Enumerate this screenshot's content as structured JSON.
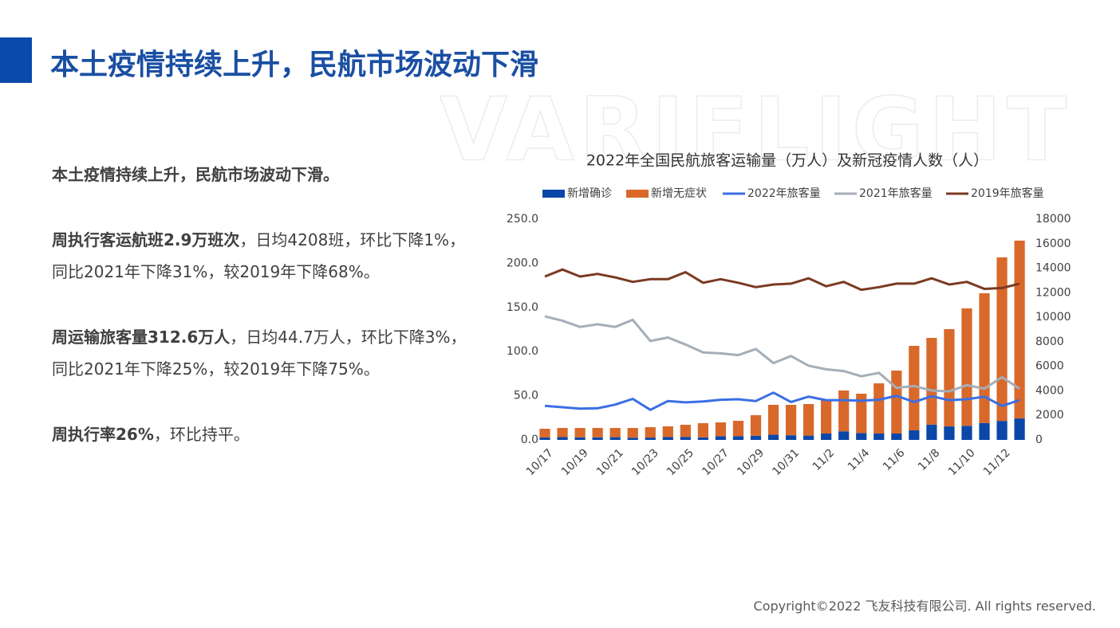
{
  "header": {
    "title": "本土疫情持续上升，民航市场波动下滑"
  },
  "watermark": "VARIFLIGHT",
  "paragraphs": [
    [
      {
        "text": "本土疫情持续上升，民航市场波动下滑。",
        "bold": true
      }
    ],
    [
      {
        "text": "周执行客运航班2.9万班次",
        "bold": true
      },
      {
        "text": "，日均4208班，环比下降1%，同比2021年下降31%，较2019年下降68%。",
        "bold": false
      }
    ],
    [
      {
        "text": "周运输旅客量312.6万人",
        "bold": true
      },
      {
        "text": "，日均44.7万人，环比下降3%，同比2021年下降25%，较2019年下降75%。",
        "bold": false
      }
    ],
    [
      {
        "text": "周执行率26%",
        "bold": true
      },
      {
        "text": "，环比持平。",
        "bold": false
      }
    ]
  ],
  "copyright": "Copyright©2022 飞友科技有限公司. All rights reserved.",
  "chart_data": {
    "type": "combo",
    "title": "2022年全国民航旅客运输量（万人）及新冠疫情人数（人）",
    "categories": [
      "10/17",
      null,
      "10/19",
      null,
      "10/21",
      null,
      "10/23",
      null,
      "10/25",
      null,
      "10/27",
      null,
      "10/29",
      null,
      "10/31",
      null,
      "11/2",
      null,
      "11/4",
      null,
      "11/6",
      null,
      "11/8",
      null,
      "11/10",
      null,
      "11/12",
      null
    ],
    "ylim": [
      0,
      250
    ],
    "yticks": [
      {
        "value": 0,
        "label": "0.0"
      },
      {
        "value": 50,
        "label": "50.0"
      },
      {
        "value": 100,
        "label": "100.0"
      },
      {
        "value": 150,
        "label": "150.0"
      },
      {
        "value": 200,
        "label": "200.0"
      },
      {
        "value": 250,
        "label": "250.0"
      }
    ],
    "y2lim": [
      0,
      18000
    ],
    "y2ticks": [
      0,
      2000,
      4000,
      6000,
      8000,
      10000,
      12000,
      14000,
      16000,
      18000
    ],
    "series": [
      {
        "name": "新增确诊",
        "type": "bar",
        "axis": "y2",
        "color": "#0b47a8",
        "values": [
          200,
          230,
          200,
          210,
          220,
          180,
          190,
          230,
          250,
          210,
          300,
          310,
          340,
          420,
          380,
          350,
          520,
          700,
          560,
          520,
          520,
          780,
          1250,
          1100,
          1150,
          1380,
          1550,
          1750
        ]
      },
      {
        "name": "新增无症状",
        "type": "bar",
        "axis": "y2",
        "color": "#d9692a",
        "values": [
          710,
          745,
          775,
          765,
          755,
          795,
          850,
          875,
          985,
          1155,
          1130,
          1250,
          1675,
          2440,
          2480,
          2575,
          2795,
          3330,
          3210,
          4095,
          5135,
          6890,
          7070,
          7935,
          9575,
          10580,
          13335,
          14500
        ]
      },
      {
        "name": "2022年旅客量",
        "type": "line",
        "color": "#3b6fe3",
        "values": [
          38.5,
          37.0,
          35.5,
          35.8,
          40.0,
          46.5,
          34.0,
          44.0,
          42.5,
          43.5,
          45.5,
          46.0,
          44.0,
          53.5,
          43.0,
          49.0,
          45.0,
          45.0,
          44.5,
          45.5,
          50.0,
          43.0,
          49.5,
          45.0,
          46.0,
          49.0,
          38.5,
          45.0
        ]
      },
      {
        "name": "2021年旅客量",
        "type": "line",
        "color": "#a5aeb8",
        "values": [
          140,
          135,
          128,
          131,
          128,
          136,
          112,
          116,
          108,
          99,
          98,
          96,
          103,
          87,
          95,
          84,
          80,
          78,
          72,
          76,
          59,
          61,
          56,
          55,
          62,
          58,
          71,
          58
        ]
      },
      {
        "name": "2019年旅客量",
        "type": "line",
        "color": "#7b3a22",
        "values": [
          185,
          193,
          185,
          188,
          184,
          179,
          182,
          182,
          190,
          178,
          182,
          178,
          173,
          176,
          177,
          183,
          174,
          179,
          170,
          173,
          177,
          177,
          183,
          176,
          179,
          171,
          172,
          177
        ]
      }
    ]
  }
}
